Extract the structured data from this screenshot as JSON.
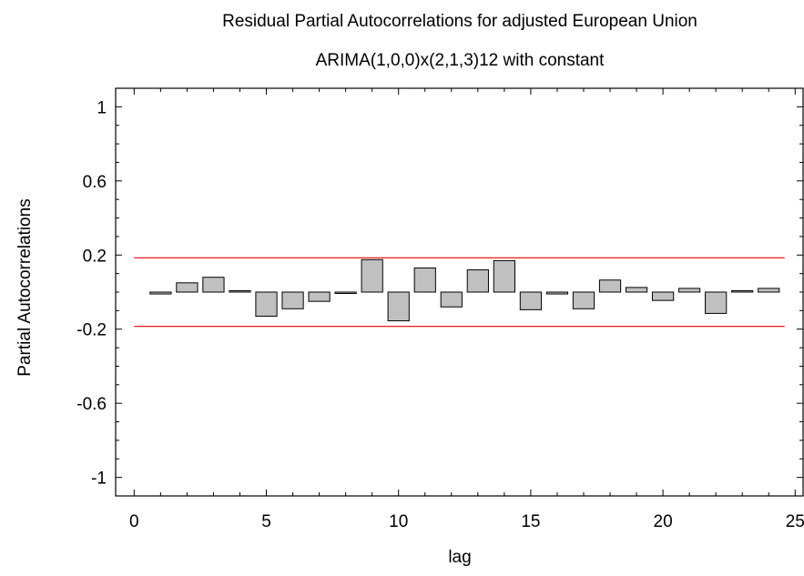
{
  "chart_data": {
    "type": "bar",
    "title": "Residual Partial Autocorrelations for adjusted European Union",
    "subtitle": "ARIMA(1,0,0)x(2,1,3)12 with constant",
    "xlabel": "lag",
    "ylabel": "Partial Autocorrelations",
    "xlim": [
      -0.7,
      25.3
    ],
    "ylim": [
      -1.1,
      1.1
    ],
    "xticks": [
      0,
      5,
      10,
      15,
      20,
      25
    ],
    "xtick_labels": [
      "0",
      "5",
      "10",
      "15",
      "20",
      "25"
    ],
    "yticks": [
      1,
      0.6,
      0.2,
      -0.2,
      -0.6,
      -1
    ],
    "ytick_labels": [
      "1",
      "0.6",
      "0.2",
      "-0.2",
      "-0.6",
      "-1"
    ],
    "lags": [
      1,
      2,
      3,
      4,
      5,
      6,
      7,
      8,
      9,
      10,
      11,
      12,
      13,
      14,
      15,
      16,
      17,
      18,
      19,
      20,
      21,
      22,
      23,
      24
    ],
    "values": [
      -0.01,
      0.05,
      0.08,
      0.0,
      -0.13,
      -0.09,
      -0.05,
      -0.005,
      0.175,
      -0.155,
      0.13,
      -0.08,
      0.12,
      0.17,
      -0.095,
      -0.01,
      -0.09,
      0.065,
      0.025,
      -0.045,
      0.02,
      -0.115,
      0.0,
      0.02
    ],
    "confidence_limits": [
      0.185,
      -0.185
    ],
    "grid": false,
    "legend": "none",
    "colors": {
      "bar_fill": "#c0c0c0",
      "bar_stroke": "#000000",
      "limit_line": "#e00000",
      "axis": "#000000"
    }
  }
}
